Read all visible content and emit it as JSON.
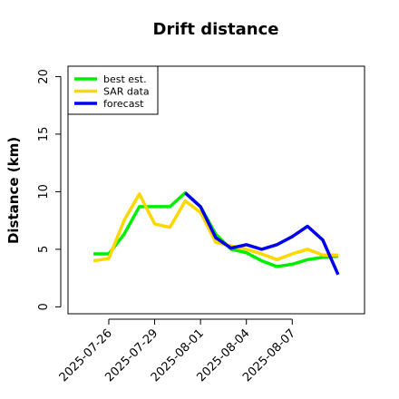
{
  "chart_data": {
    "type": "line",
    "title": "Drift distance",
    "y_label": "Distance (km)",
    "x": [
      "2025-07-25",
      "2025-07-26",
      "2025-07-27",
      "2025-07-28",
      "2025-07-29",
      "2025-07-30",
      "2025-07-31",
      "2025-08-01",
      "2025-08-02",
      "2025-08-03",
      "2025-08-04",
      "2025-08-05",
      "2025-08-06",
      "2025-08-07",
      "2025-08-08",
      "2025-08-09",
      "2025-08-10"
    ],
    "series": [
      {
        "name": "best est.",
        "color": "#00ee00",
        "values": [
          4.6,
          4.6,
          6.3,
          8.7,
          8.7,
          8.7,
          9.9,
          8.7,
          6.3,
          5.0,
          4.7,
          4.0,
          3.5,
          3.7,
          4.1,
          4.3,
          4.4
        ]
      },
      {
        "name": "SAR data",
        "color": "#ffd700",
        "values": [
          4.0,
          4.2,
          7.5,
          9.8,
          7.2,
          6.9,
          9.2,
          8.2,
          5.6,
          5.3,
          5.0,
          4.6,
          4.1,
          4.6,
          5.0,
          4.5,
          4.5
        ]
      },
      {
        "name": "forecast",
        "color": "#0000ee",
        "values": [
          null,
          null,
          null,
          null,
          null,
          null,
          9.9,
          8.7,
          6.0,
          5.1,
          5.4,
          5.0,
          5.4,
          6.1,
          7.0,
          5.8,
          2.8
        ]
      }
    ],
    "xlim": [
      "2025-07-23T08:00",
      "2025-08-11T17:30"
    ],
    "xticks": [
      "2025-07-26",
      "2025-07-29",
      "2025-08-01",
      "2025-08-04",
      "2025-08-07"
    ],
    "ylim": [
      -0.6,
      20.9
    ],
    "yticks": [
      0,
      5,
      10,
      15,
      20
    ],
    "legend": "upper left"
  }
}
